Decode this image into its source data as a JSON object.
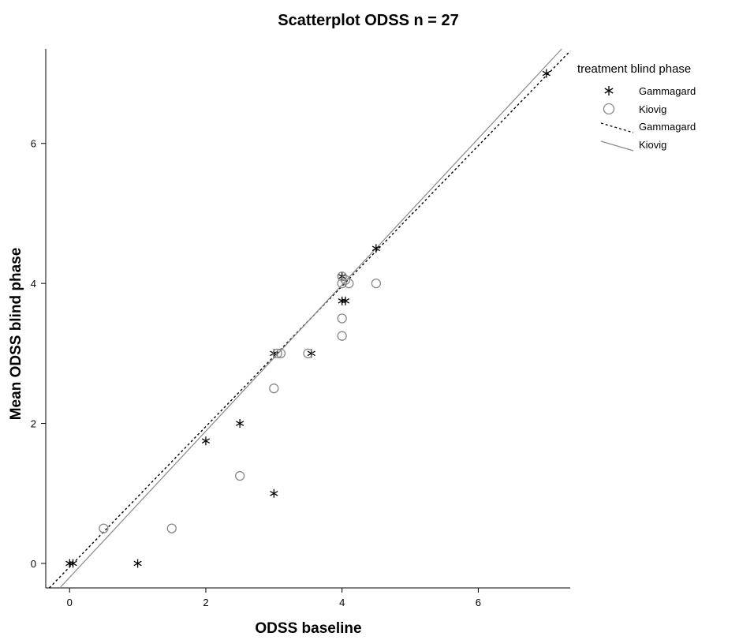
{
  "chart_data": {
    "type": "scatter",
    "title": "Scatterplot ODSS n = 27",
    "xlabel": "ODSS baseline",
    "ylabel": "Mean ODSS blind phase",
    "xlim": [
      -0.35,
      7.35
    ],
    "ylim": [
      -0.35,
      7.35
    ],
    "xticks": [
      0,
      2,
      4,
      6
    ],
    "yticks": [
      0,
      2,
      4,
      6
    ],
    "grid": false,
    "legend": {
      "title": "treatment blind phase",
      "position": "top-right",
      "entries": [
        {
          "label": "Gammagard",
          "kind": "marker-star"
        },
        {
          "label": "Kiovig",
          "kind": "marker-circle"
        },
        {
          "label": "Gammagard",
          "kind": "line-dashed"
        },
        {
          "label": "Kiovig",
          "kind": "line-solid"
        }
      ]
    },
    "series": [
      {
        "name": "Gammagard",
        "marker": "star",
        "color": "#000000",
        "points": [
          {
            "x": 0,
            "y": 0
          },
          {
            "x": 0.05,
            "y": 0
          },
          {
            "x": 1,
            "y": 0
          },
          {
            "x": 2,
            "y": 1.75
          },
          {
            "x": 2.5,
            "y": 2
          },
          {
            "x": 3,
            "y": 1
          },
          {
            "x": 3,
            "y": 3
          },
          {
            "x": 3.55,
            "y": 3
          },
          {
            "x": 4,
            "y": 4.1
          },
          {
            "x": 4,
            "y": 3.75
          },
          {
            "x": 4.05,
            "y": 3.75
          },
          {
            "x": 4.5,
            "y": 4.5
          },
          {
            "x": 7,
            "y": 7
          }
        ],
        "fit": {
          "slope": 1.003,
          "intercept": -0.051,
          "style": "dashed",
          "color": "#000000"
        }
      },
      {
        "name": "Kiovig",
        "marker": "circle",
        "color": "#888888",
        "points": [
          {
            "x": 0.5,
            "y": 0.5
          },
          {
            "x": 1.5,
            "y": 0.5
          },
          {
            "x": 2.5,
            "y": 1.25
          },
          {
            "x": 3,
            "y": 2.5
          },
          {
            "x": 3.05,
            "y": 3
          },
          {
            "x": 3.1,
            "y": 3
          },
          {
            "x": 3.5,
            "y": 3
          },
          {
            "x": 4,
            "y": 3.25
          },
          {
            "x": 4,
            "y": 3.5
          },
          {
            "x": 4,
            "y": 4
          },
          {
            "x": 4,
            "y": 4.1
          },
          {
            "x": 4.05,
            "y": 4.05
          },
          {
            "x": 4.1,
            "y": 4
          },
          {
            "x": 4.5,
            "y": 4
          }
        ],
        "fit": {
          "slope": 1.045,
          "intercept": -0.2,
          "style": "solid",
          "color": "#888888"
        }
      }
    ]
  }
}
